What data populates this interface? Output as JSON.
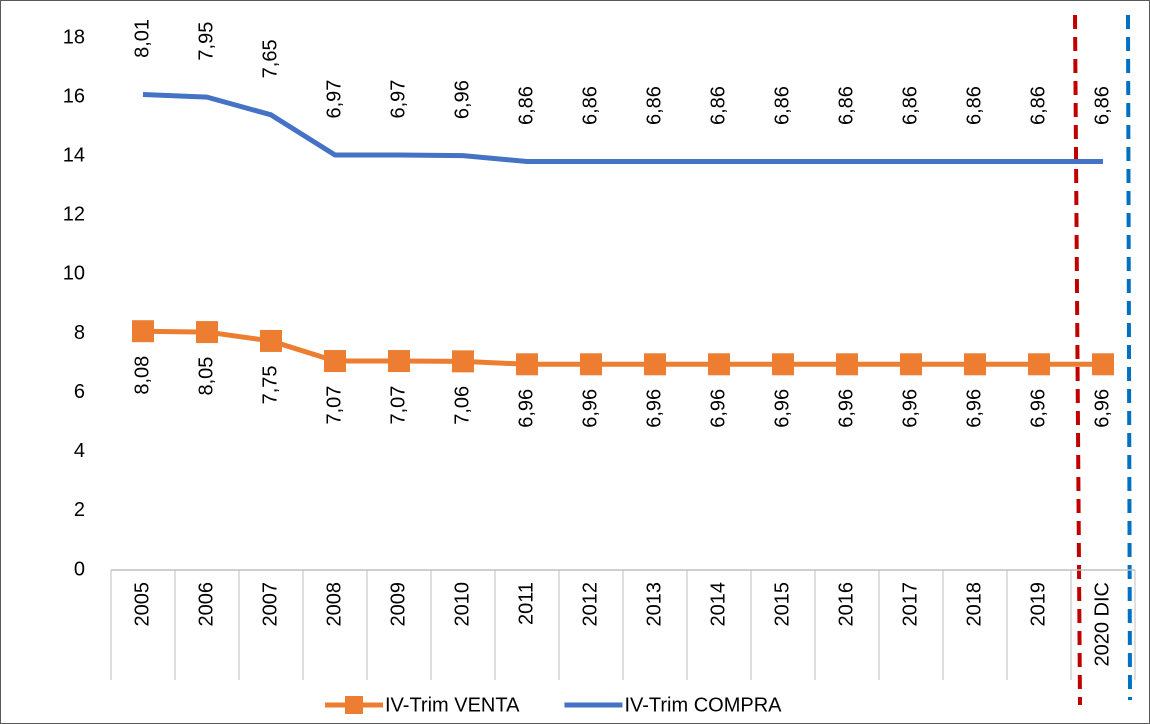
{
  "chart_data": {
    "type": "line",
    "stacked": true,
    "categories": [
      "2005",
      "2006",
      "2007",
      "2008",
      "2009",
      "2010",
      "2011",
      "2012",
      "2013",
      "2014",
      "2015",
      "2016",
      "2017",
      "2018",
      "2019",
      "2020 DIC"
    ],
    "series": [
      {
        "name": "IV-Trim VENTA",
        "color": "#ed7d31",
        "marker": "square",
        "values": [
          8.08,
          8.05,
          7.75,
          7.07,
          7.07,
          7.06,
          6.96,
          6.96,
          6.96,
          6.96,
          6.96,
          6.96,
          6.96,
          6.96,
          6.96,
          6.96
        ],
        "value_labels": [
          "8,08",
          "8,05",
          "7,75",
          "7,07",
          "7,07",
          "7,06",
          "6,96",
          "6,96",
          "6,96",
          "6,96",
          "6,96",
          "6,96",
          "6,96",
          "6,96",
          "6,96",
          "6,96"
        ]
      },
      {
        "name": "IV-Trim COMPRA",
        "color": "#4472c4",
        "marker": "none",
        "values": [
          8.01,
          7.95,
          7.65,
          6.97,
          6.97,
          6.96,
          6.86,
          6.86,
          6.86,
          6.86,
          6.86,
          6.86,
          6.86,
          6.86,
          6.86,
          6.86
        ],
        "value_labels": [
          "8,01",
          "7,95",
          "7,65",
          "6,97",
          "6,97",
          "6,96",
          "6,86",
          "6,86",
          "6,86",
          "6,86",
          "6,86",
          "6,86",
          "6,86",
          "6,86",
          "6,86",
          "6,86"
        ]
      }
    ],
    "ylim": [
      0,
      18
    ],
    "yticks": [
      0,
      2,
      4,
      6,
      8,
      10,
      12,
      14,
      16,
      18
    ],
    "grid": false,
    "legend": "bottom"
  }
}
